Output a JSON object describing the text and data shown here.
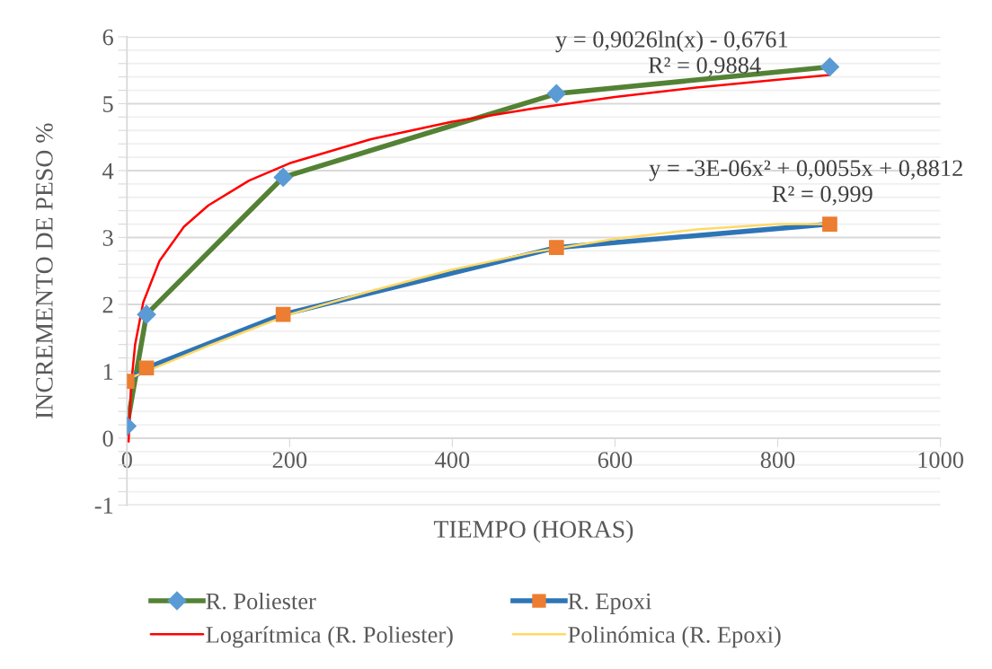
{
  "chart_data": {
    "type": "line",
    "xlabel": "TIEMPO (HORAS)",
    "ylabel": "INCREMENTO DE PESO %",
    "xlim": [
      0,
      1000
    ],
    "xticks": [
      0,
      200,
      400,
      600,
      800,
      1000
    ],
    "ylim": [
      -1,
      6
    ],
    "yticks": [
      -1,
      {
        "value": -0.8,
        "label": null
      },
      {
        "value": -0.6,
        "label": null
      },
      {
        "value": -0.4,
        "label": null
      },
      {
        "value": -0.2,
        "label": null
      },
      0,
      {
        "value": 0.2,
        "label": null
      },
      {
        "value": 0.4,
        "label": null
      },
      {
        "value": 0.6,
        "label": null
      },
      {
        "value": 0.8,
        "label": null
      },
      1,
      {
        "value": 1.2,
        "label": null
      },
      {
        "value": 1.4,
        "label": null
      },
      {
        "value": 1.6,
        "label": null
      },
      {
        "value": 1.8,
        "label": null
      },
      2,
      {
        "value": 2.2,
        "label": null
      },
      {
        "value": 2.4,
        "label": null
      },
      {
        "value": 2.6,
        "label": null
      },
      {
        "value": 2.8,
        "label": null
      },
      3,
      {
        "value": 3.2,
        "label": null
      },
      {
        "value": 3.4,
        "label": null
      },
      {
        "value": 3.6,
        "label": null
      },
      {
        "value": 3.8,
        "label": null
      },
      4,
      {
        "value": 4.2,
        "label": null
      },
      {
        "value": 4.4,
        "label": null
      },
      {
        "value": 4.6,
        "label": null
      },
      {
        "value": 4.8,
        "label": null
      },
      5,
      {
        "value": 5.2,
        "label": null
      },
      {
        "value": 5.4,
        "label": null
      },
      {
        "value": 5.6,
        "label": null
      },
      {
        "value": 5.8,
        "label": null
      },
      6
    ],
    "grid": "y",
    "legend": "bottom",
    "series": [
      {
        "name": "R. Poliester",
        "color": "#548235",
        "marker": "diamond",
        "x": [
          0,
          24,
          192,
          528,
          864
        ],
        "values": [
          0.18,
          1.85,
          3.9,
          5.15,
          5.55
        ]
      },
      {
        "name": "R. Epoxi",
        "color": "#2e75b6",
        "marker": "square",
        "x": [
          0,
          24,
          192,
          528,
          864
        ],
        "values": [
          0.85,
          1.05,
          1.85,
          2.85,
          3.2
        ]
      },
      {
        "name": "Logarítmica (R. Poliester)",
        "color": "#ff0000",
        "marker": "none",
        "x": [
          2,
          5,
          10,
          20,
          40,
          70,
          100,
          150,
          200,
          300,
          400,
          500,
          600,
          700,
          800,
          864
        ],
        "values": [
          -0.05,
          0.78,
          1.4,
          2.03,
          2.65,
          3.16,
          3.48,
          3.85,
          4.11,
          4.47,
          4.73,
          4.93,
          5.1,
          5.24,
          5.36,
          5.43
        ]
      },
      {
        "name": "Polinómica (R. Epoxi)",
        "color": "#ffd966",
        "marker": "none",
        "x": [
          0,
          100,
          200,
          300,
          400,
          500,
          600,
          700,
          800,
          864
        ],
        "values": [
          0.88,
          1.38,
          1.85,
          2.2,
          2.52,
          2.78,
          2.98,
          3.12,
          3.2,
          3.2
        ]
      }
    ],
    "annotations": [
      "y = 0,9026ln(x) - 0,6761",
      "R² = 0,9884",
      "y = -3E-06x² + 0,0055x + 0,8812",
      "R² = 0,999"
    ]
  }
}
